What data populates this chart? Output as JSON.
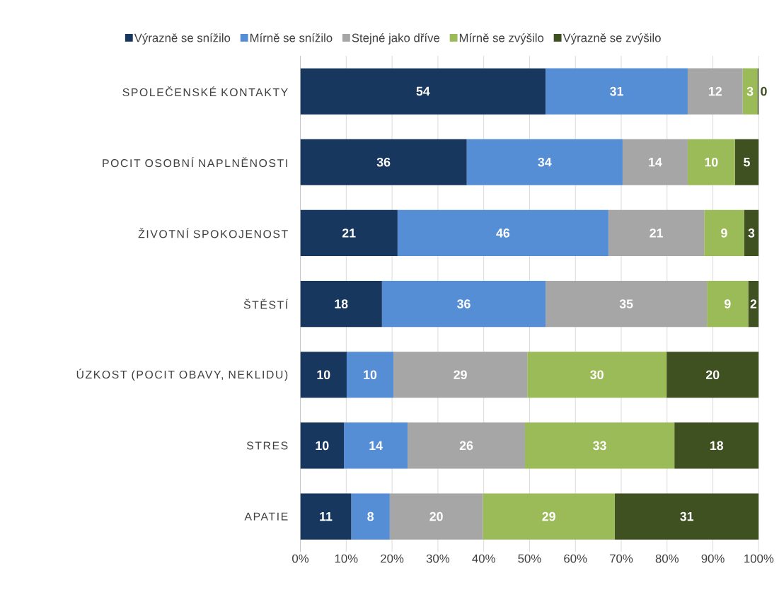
{
  "chart_data": {
    "type": "bar",
    "orientation": "horizontal",
    "stacked": true,
    "categories": [
      "SPOLEČENSKÉ KONTAKTY",
      "POCIT OSOBNÍ NAPLNĚNOSTI",
      "ŽIVOTNÍ SPOKOJENOST",
      "ŠTĚSTÍ",
      "ÚZKOST (POCIT OBAVY, NEKLIDU)",
      "STRES",
      "APATIE"
    ],
    "series": [
      {
        "name": "Výrazně se snížilo",
        "color": "#17375e",
        "values": [
          53.5,
          36.3,
          21.2,
          17.8,
          10.1,
          9.5,
          11.1
        ],
        "value_labels": [
          "54",
          "36",
          "21",
          "18",
          "10",
          "10",
          "11"
        ]
      },
      {
        "name": "Mírně se snížilo",
        "color": "#558ed5",
        "values": [
          31.0,
          34.0,
          46.0,
          35.7,
          10.2,
          13.9,
          8.4
        ],
        "value_labels": [
          "31",
          "34",
          "46",
          "36",
          "10",
          "14",
          "8"
        ]
      },
      {
        "name": "Stejné jako dříve",
        "color": "#a6a6a6",
        "values": [
          12.0,
          14.2,
          20.9,
          35.2,
          29.2,
          25.6,
          20.3
        ],
        "value_labels": [
          "12",
          "14",
          "21",
          "35",
          "29",
          "26",
          "20"
        ]
      },
      {
        "name": "Mírně se zvýšilo",
        "color": "#9bbb59",
        "values": [
          3.2,
          10.3,
          8.7,
          9.0,
          30.4,
          32.6,
          28.8
        ],
        "value_labels": [
          "3",
          "10",
          "9",
          "9",
          "30",
          "33",
          "29"
        ]
      },
      {
        "name": "Výrazně se zvýšilo",
        "color": "#3f5021",
        "values": [
          0.3,
          5.2,
          3.2,
          2.3,
          20.1,
          18.4,
          31.4
        ],
        "value_labels": [
          "0",
          "5",
          "3",
          "2",
          "20",
          "18",
          "31"
        ]
      }
    ],
    "xlim": [
      0,
      100
    ],
    "xticks": [
      {
        "value": 0,
        "label": "0%"
      },
      {
        "value": 10,
        "label": "10%"
      },
      {
        "value": 20,
        "label": "20%"
      },
      {
        "value": 30,
        "label": "30%"
      },
      {
        "value": 40,
        "label": "40%"
      },
      {
        "value": 50,
        "label": "50%"
      },
      {
        "value": 60,
        "label": "60%"
      },
      {
        "value": 70,
        "label": "70%"
      },
      {
        "value": 80,
        "label": "80%"
      },
      {
        "value": 90,
        "label": "90%"
      },
      {
        "value": 100,
        "label": "100%"
      }
    ],
    "grid": "x",
    "legend": "top"
  }
}
